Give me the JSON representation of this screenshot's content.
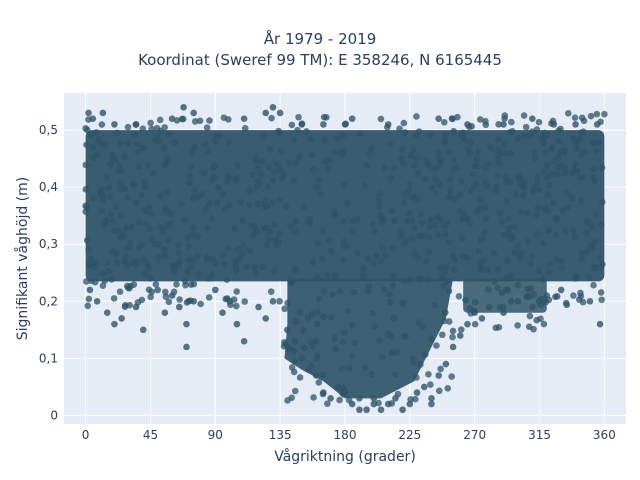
{
  "chart_data": {
    "type": "scatter",
    "title_line1": "År 1979 - 2019",
    "title_line2": "Koordinat (Sweref 99 TM): E 358246, N 6165445",
    "xlabel": "Vågriktning (grader)",
    "ylabel": "Signifikant våghöjd (m)",
    "xlim": [
      -15,
      375
    ],
    "ylim": [
      -0.015,
      0.565
    ],
    "x_ticks": [
      0,
      45,
      90,
      135,
      180,
      225,
      270,
      315,
      360
    ],
    "x_tick_labels": [
      "0",
      "45",
      "90",
      "135",
      "180",
      "225",
      "270",
      "315",
      "360"
    ],
    "y_ticks": [
      0,
      0.1,
      0.2,
      0.3,
      0.4,
      0.5
    ],
    "y_tick_labels": [
      "0",
      "0,1",
      "0,2",
      "0,3",
      "0,4",
      "0,5"
    ],
    "grid": true,
    "marker_color": "#2f5468",
    "plot_background": "#e5ecf6",
    "series": [
      {
        "points": [
          [
            2,
            0.53
          ],
          [
            5,
            0.52
          ],
          [
            12,
            0.53
          ],
          [
            20,
            0.51
          ],
          [
            35,
            0.51
          ],
          [
            60,
            0.52
          ],
          [
            68,
            0.54
          ],
          [
            75,
            0.53
          ],
          [
            110,
            0.52
          ],
          [
            125,
            0.53
          ],
          [
            130,
            0.54
          ],
          [
            135,
            0.53
          ],
          [
            150,
            0.51
          ],
          [
            165,
            0.51
          ],
          [
            180,
            0.51
          ],
          [
            185,
            0.52
          ],
          [
            210,
            0.51
          ],
          [
            245,
            0.52
          ],
          [
            265,
            0.51
          ],
          [
            290,
            0.51
          ],
          [
            310,
            0.52
          ],
          [
            325,
            0.51
          ],
          [
            340,
            0.51
          ],
          [
            355,
            0.51
          ],
          [
            3,
            0.22
          ],
          [
            8,
            0.2
          ],
          [
            15,
            0.18
          ],
          [
            20,
            0.16
          ],
          [
            25,
            0.17
          ],
          [
            35,
            0.19
          ],
          [
            40,
            0.15
          ],
          [
            45,
            0.24
          ],
          [
            50,
            0.22
          ],
          [
            55,
            0.18
          ],
          [
            60,
            0.21
          ],
          [
            65,
            0.19
          ],
          [
            70,
            0.16
          ],
          [
            75,
            0.2
          ],
          [
            85,
            0.24
          ],
          [
            90,
            0.22
          ],
          [
            95,
            0.18
          ],
          [
            100,
            0.2
          ],
          [
            105,
            0.16
          ],
          [
            110,
            0.13
          ],
          [
            120,
            0.19
          ],
          [
            125,
            0.17
          ],
          [
            130,
            0.2
          ],
          [
            140,
            0.15
          ],
          [
            145,
            0.13
          ],
          [
            150,
            0.1
          ],
          [
            155,
            0.08
          ],
          [
            160,
            0.07
          ],
          [
            165,
            0.04
          ],
          [
            170,
            0.03
          ],
          [
            175,
            0.05
          ],
          [
            180,
            0.04
          ],
          [
            185,
            0.02
          ],
          [
            190,
            0.03
          ],
          [
            195,
            0.01
          ],
          [
            200,
            0.02
          ],
          [
            205,
            0.01
          ],
          [
            210,
            0.02
          ],
          [
            215,
            0.03
          ],
          [
            220,
            0.01
          ],
          [
            225,
            0.02
          ],
          [
            230,
            0.04
          ],
          [
            235,
            0.05
          ],
          [
            240,
            0.03
          ],
          [
            245,
            0.07
          ],
          [
            250,
            0.09
          ],
          [
            255,
            0.12
          ],
          [
            260,
            0.14
          ],
          [
            265,
            0.16
          ],
          [
            270,
            0.18
          ],
          [
            275,
            0.17
          ],
          [
            280,
            0.19
          ],
          [
            290,
            0.18
          ],
          [
            300,
            0.2
          ],
          [
            310,
            0.19
          ],
          [
            320,
            0.21
          ],
          [
            330,
            0.22
          ],
          [
            340,
            0.24
          ],
          [
            350,
            0.2
          ],
          [
            357,
            0.16
          ],
          [
            27,
            0.27
          ],
          [
            55,
            0.28
          ],
          [
            112,
            0.26
          ],
          [
            205,
            0.27
          ],
          [
            250,
            0.26
          ],
          [
            330,
            0.27
          ],
          [
            70,
            0.12
          ],
          [
            160,
            0.13
          ],
          [
            190,
            0.01
          ],
          [
            200,
            0.03
          ],
          [
            240,
            0.02
          ]
        ]
      }
    ]
  }
}
